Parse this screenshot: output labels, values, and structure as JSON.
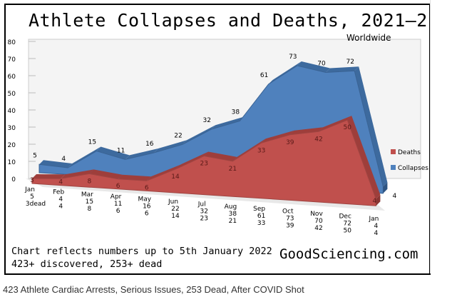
{
  "chart_data": {
    "type": "area",
    "title": "Athlete Collapses and Deaths, 2021—2",
    "subtitle": "Worldwide",
    "categories": [
      "Jan",
      "Feb",
      "Mar",
      "Apr",
      "May",
      "Jun",
      "Jul",
      "Aug",
      "Sep",
      "Oct",
      "Nov",
      "Dec",
      "Jan"
    ],
    "category_labels": [
      [
        "Jan",
        "5",
        "3dead"
      ],
      [
        "Feb",
        "4",
        "4"
      ],
      [
        "Mar",
        "15",
        "8"
      ],
      [
        "Apr",
        "11",
        "6"
      ],
      [
        "May",
        "16",
        "6"
      ],
      [
        "Jun",
        "22",
        "14"
      ],
      [
        "Jul",
        "32",
        "23"
      ],
      [
        "Aug",
        "38",
        "21"
      ],
      [
        "Sep",
        "61",
        "33"
      ],
      [
        "Oct",
        "73",
        "39"
      ],
      [
        "Nov",
        "70",
        "42"
      ],
      [
        "Dec",
        "72",
        "50"
      ],
      [
        "Jan",
        "4",
        "4"
      ]
    ],
    "series": [
      {
        "name": "Collapses",
        "color": "#4f81bd",
        "values": [
          5,
          4,
          15,
          11,
          16,
          22,
          32,
          38,
          61,
          73,
          70,
          72,
          4
        ]
      },
      {
        "name": "Deaths",
        "color": "#c0504d",
        "values": [
          3,
          4,
          8,
          6,
          6,
          14,
          23,
          21,
          33,
          39,
          42,
          50,
          4
        ]
      }
    ],
    "yticks": [
      0,
      10,
      20,
      30,
      40,
      50,
      60,
      70,
      80
    ],
    "ylim": [
      0,
      80
    ],
    "legend": "right"
  },
  "notes": {
    "line1": "Chart reflects numbers up to 5th January 2022",
    "line2": "423+ discovered, 253+ dead",
    "site": "GoodSciencing.com"
  },
  "caption": "423 Athlete Cardiac Arrests, Serious Issues, 253 Dead, After COVID Shot"
}
